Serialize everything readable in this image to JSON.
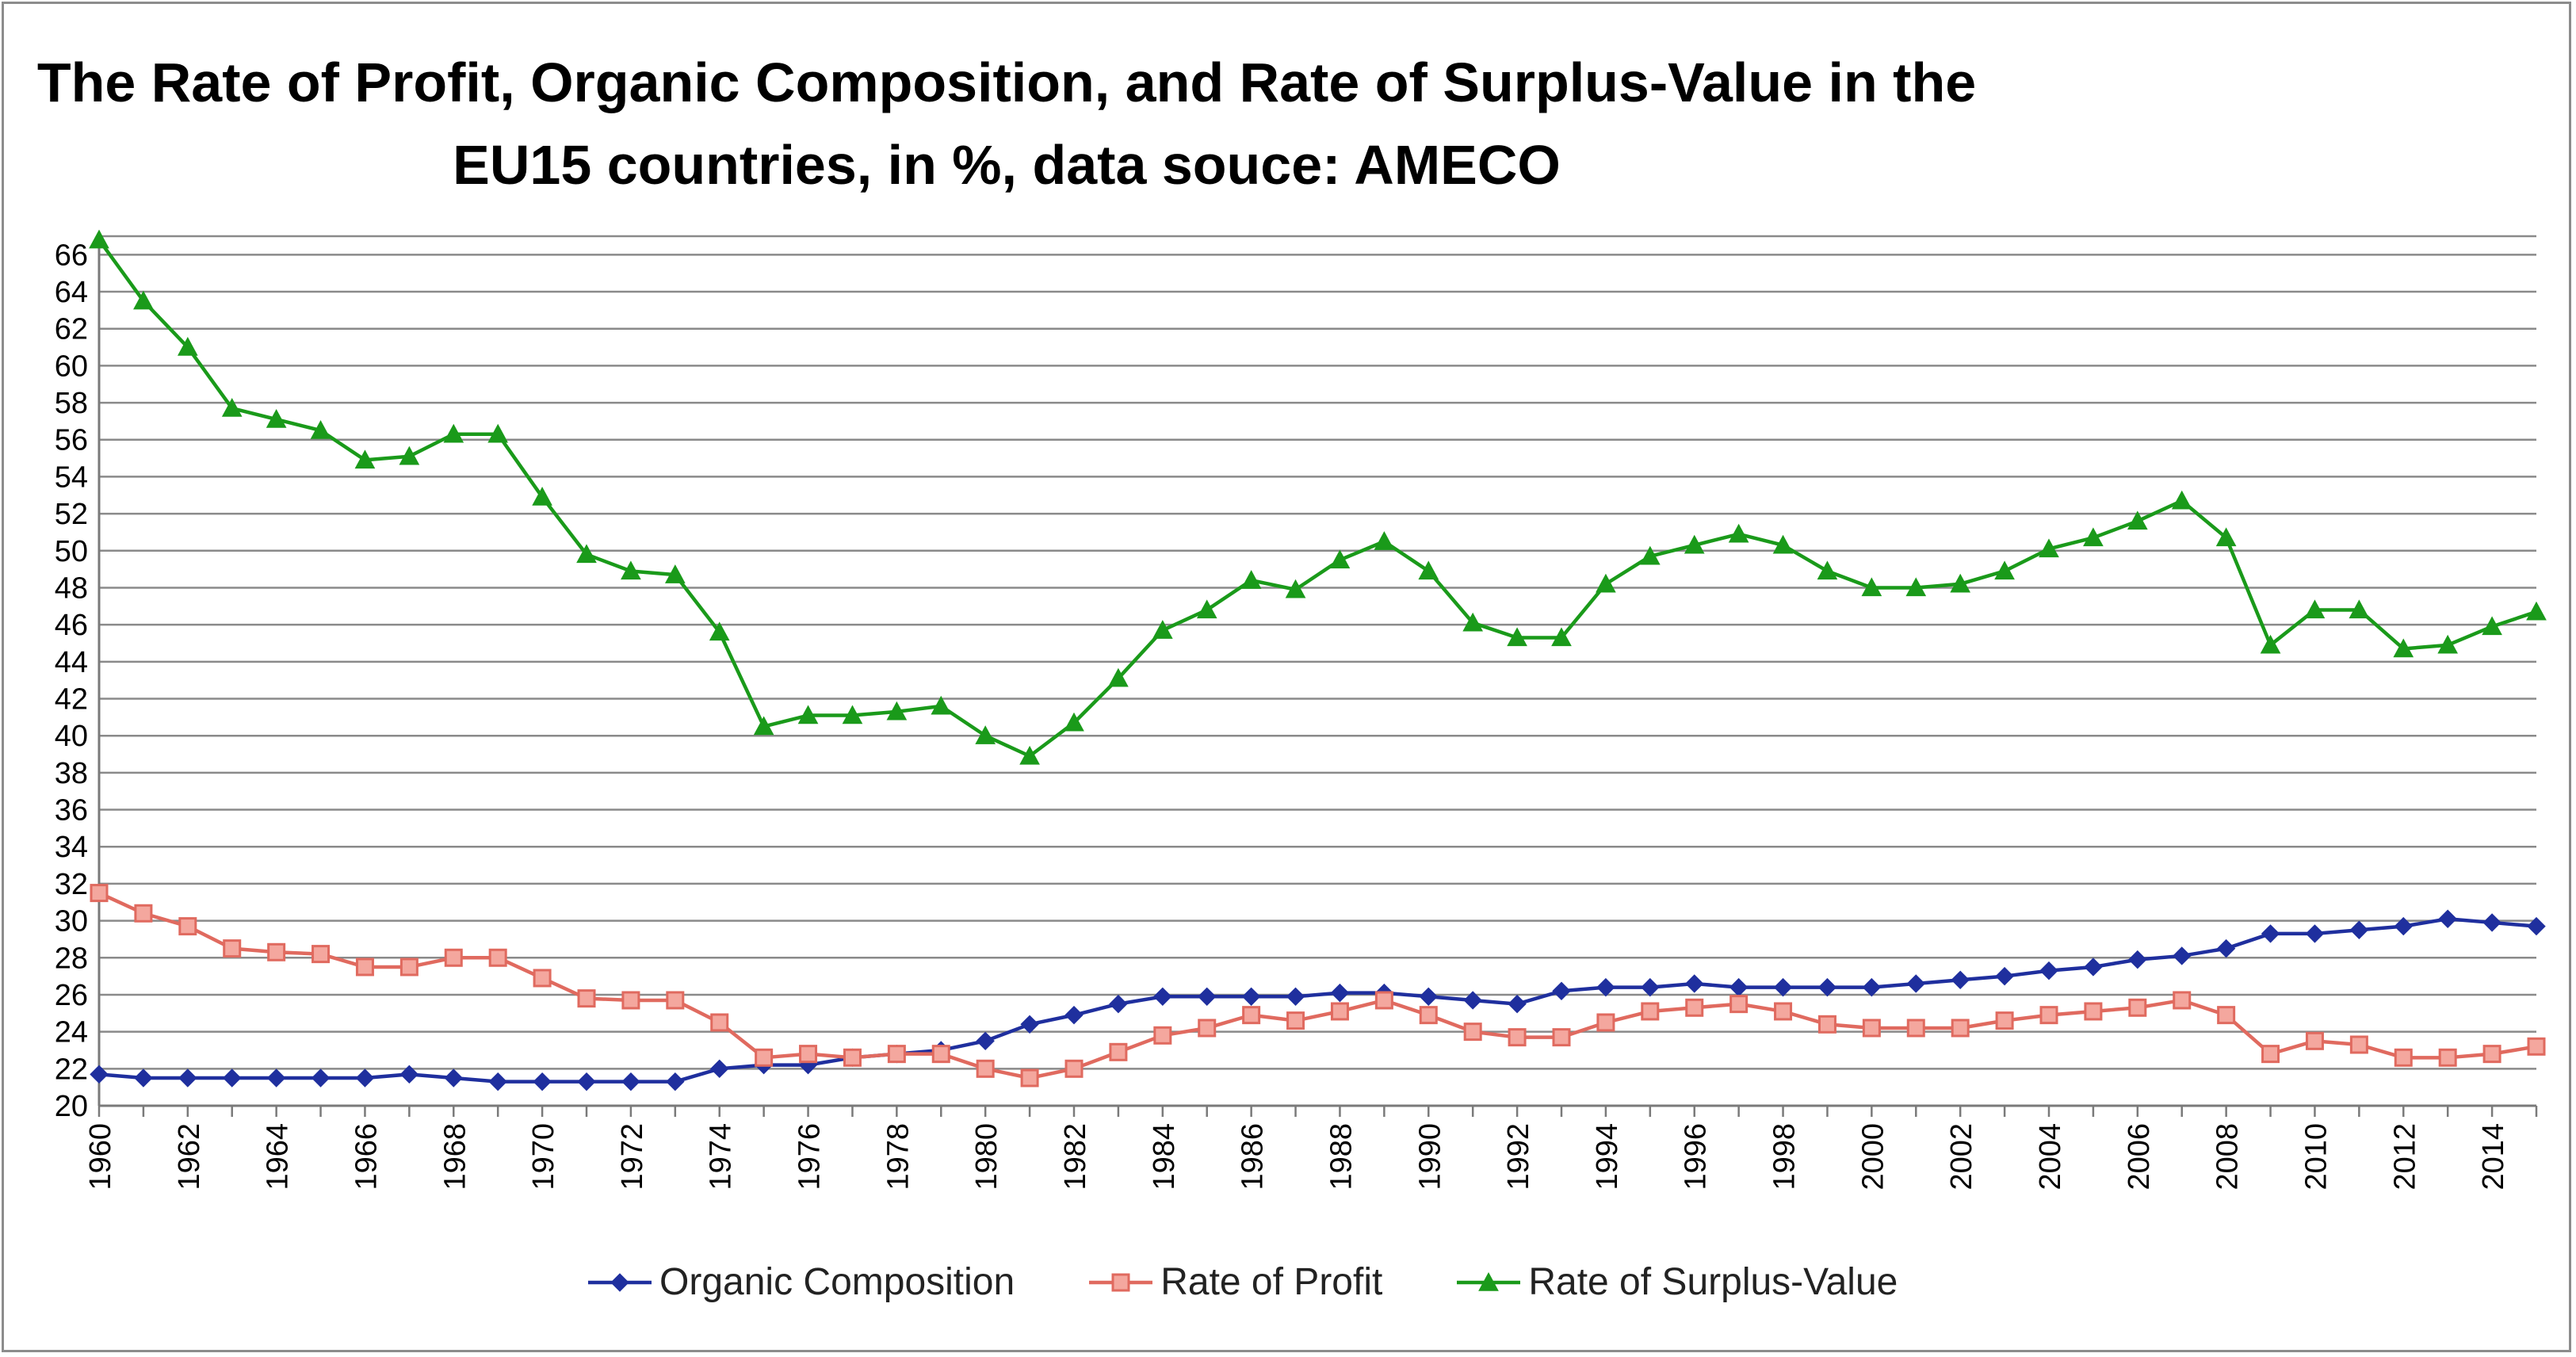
{
  "chart_data": {
    "type": "line",
    "title": [
      "The Rate of Profit, Organic Composition, and Rate of Surplus-Value in the",
      "EU15 countries, in %, data souce:  AMECO"
    ],
    "xlabel": "",
    "ylabel": "",
    "ylim": [
      20,
      67
    ],
    "yticks": [
      20,
      22,
      24,
      26,
      28,
      30,
      32,
      34,
      36,
      38,
      40,
      42,
      44,
      46,
      48,
      50,
      52,
      54,
      56,
      58,
      60,
      62,
      64,
      66
    ],
    "x": [
      1960,
      1961,
      1962,
      1963,
      1964,
      1965,
      1966,
      1967,
      1968,
      1969,
      1970,
      1971,
      1972,
      1973,
      1974,
      1975,
      1976,
      1977,
      1978,
      1979,
      1980,
      1981,
      1982,
      1983,
      1984,
      1985,
      1986,
      1987,
      1988,
      1989,
      1990,
      1991,
      1992,
      1993,
      1994,
      1995,
      1996,
      1997,
      1998,
      1999,
      2000,
      2001,
      2002,
      2003,
      2004,
      2005,
      2006,
      2007,
      2008,
      2009,
      2010,
      2011,
      2012,
      2013,
      2014,
      2015
    ],
    "xtick_labels": [
      "1960",
      "1962",
      "1964",
      "1966",
      "1968",
      "1970",
      "1972",
      "1974",
      "1976",
      "1978",
      "1980",
      "1982",
      "1984",
      "1986",
      "1988",
      "1990",
      "1992",
      "1994",
      "1996",
      "1998",
      "2000",
      "2002",
      "2004",
      "2006",
      "2008",
      "2010",
      "2012",
      "2014"
    ],
    "grid": true,
    "legend_position": "bottom",
    "series": [
      {
        "name": "Organic Composition",
        "color": "#1f2f9e",
        "marker": "diamond",
        "values": [
          21.7,
          21.5,
          21.5,
          21.5,
          21.5,
          21.5,
          21.5,
          21.7,
          21.5,
          21.3,
          21.3,
          21.3,
          21.3,
          21.3,
          22.0,
          22.2,
          22.2,
          22.6,
          22.8,
          23.0,
          23.5,
          24.4,
          24.9,
          25.5,
          25.9,
          25.9,
          25.9,
          25.9,
          26.1,
          26.1,
          25.9,
          25.7,
          25.5,
          26.2,
          26.4,
          26.4,
          26.6,
          26.4,
          26.4,
          26.4,
          26.4,
          26.6,
          26.8,
          27.0,
          27.3,
          27.5,
          27.9,
          28.1,
          28.5,
          29.3,
          29.3,
          29.5,
          29.7,
          30.1,
          29.9,
          29.7
        ]
      },
      {
        "name": "Rate of Profit",
        "color": "#e06a5f",
        "marker": "square",
        "values": [
          31.5,
          30.4,
          29.7,
          28.5,
          28.3,
          28.2,
          27.5,
          27.5,
          28.0,
          28.0,
          26.9,
          25.8,
          25.7,
          25.7,
          24.5,
          22.6,
          22.8,
          22.6,
          22.8,
          22.8,
          22.0,
          21.5,
          22.0,
          22.9,
          23.8,
          24.2,
          24.9,
          24.6,
          25.1,
          25.7,
          24.9,
          24.0,
          23.7,
          23.7,
          24.5,
          25.1,
          25.3,
          25.5,
          25.1,
          24.4,
          24.2,
          24.2,
          24.2,
          24.6,
          24.9,
          25.1,
          25.3,
          25.7,
          24.9,
          22.8,
          23.5,
          23.3,
          22.6,
          22.6,
          22.8,
          23.2
        ]
      },
      {
        "name": "Rate of Surplus-Value",
        "color": "#1a9a1a",
        "marker": "triangle",
        "values": [
          66.8,
          63.5,
          61.0,
          57.7,
          57.1,
          56.5,
          54.9,
          55.1,
          56.3,
          56.3,
          52.9,
          49.8,
          48.9,
          48.7,
          45.6,
          40.5,
          41.1,
          41.1,
          41.3,
          41.6,
          40.0,
          38.9,
          40.7,
          43.1,
          45.7,
          46.8,
          48.4,
          47.9,
          49.5,
          50.5,
          48.9,
          46.1,
          45.3,
          45.3,
          48.2,
          49.7,
          50.3,
          50.9,
          50.3,
          48.9,
          48.0,
          48.0,
          48.2,
          48.9,
          50.1,
          50.7,
          51.6,
          52.7,
          50.7,
          44.9,
          46.8,
          46.8,
          44.7,
          44.9,
          45.9,
          46.7
        ]
      }
    ]
  }
}
